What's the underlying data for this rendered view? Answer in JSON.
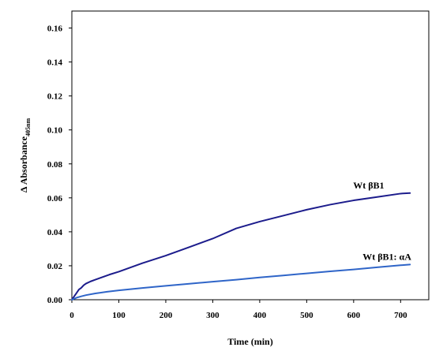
{
  "chart_data": {
    "type": "line",
    "title": "",
    "xlabel": "Time (min)",
    "ylabel": {
      "main": "Δ Absorbance",
      "subscript": "405nm"
    },
    "xlim": [
      0,
      760
    ],
    "ylim": [
      0,
      0.17
    ],
    "xticks": [
      0,
      100,
      200,
      300,
      400,
      500,
      600,
      700
    ],
    "yticks": [
      0.0,
      0.02,
      0.04,
      0.06,
      0.08,
      0.1,
      0.12,
      0.14,
      0.16
    ],
    "xtick_labels": [
      "0",
      "100",
      "200",
      "300",
      "400",
      "500",
      "600",
      "700"
    ],
    "ytick_labels": [
      "0.00",
      "0.02",
      "0.04",
      "0.06",
      "0.08",
      "0.10",
      "0.12",
      "0.14",
      "0.16"
    ],
    "grid": false,
    "legend": "inline labels near line ends",
    "series": [
      {
        "name": "Wt βB1",
        "color": "#1c1c8c",
        "x": [
          0,
          5,
          10,
          15,
          20,
          25,
          30,
          40,
          50,
          60,
          80,
          100,
          150,
          200,
          250,
          300,
          350,
          400,
          450,
          500,
          550,
          600,
          650,
          700,
          720
        ],
        "y": [
          0.0,
          0.002,
          0.004,
          0.006,
          0.007,
          0.0085,
          0.0095,
          0.0108,
          0.0118,
          0.0128,
          0.0148,
          0.0165,
          0.0215,
          0.026,
          0.031,
          0.036,
          0.042,
          0.046,
          0.0495,
          0.053,
          0.056,
          0.0585,
          0.0605,
          0.0625,
          0.0628
        ]
      },
      {
        "name": "Wt βB1: αA",
        "color": "#2f65c8",
        "x": [
          0,
          10,
          20,
          30,
          50,
          75,
          100,
          150,
          200,
          250,
          300,
          350,
          400,
          450,
          500,
          550,
          600,
          650,
          700,
          720
        ],
        "y": [
          0.0,
          0.0012,
          0.002,
          0.0027,
          0.0037,
          0.0047,
          0.0055,
          0.0069,
          0.0082,
          0.0094,
          0.0106,
          0.0118,
          0.0131,
          0.0143,
          0.0155,
          0.0167,
          0.0178,
          0.0191,
          0.0203,
          0.0207
        ]
      }
    ]
  }
}
